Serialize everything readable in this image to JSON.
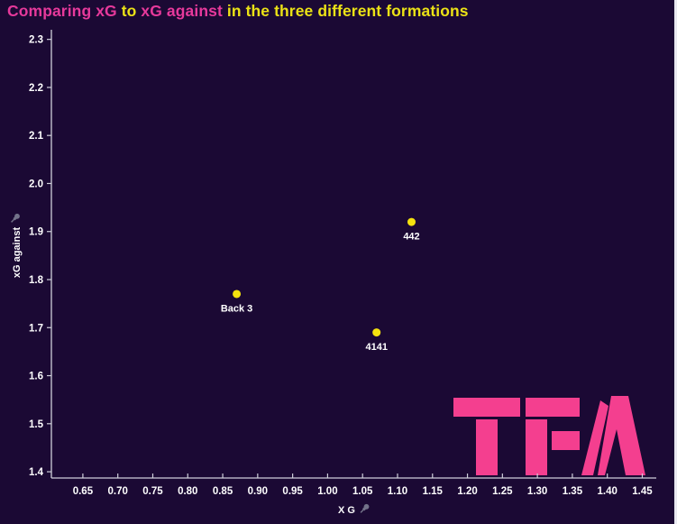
{
  "title": {
    "segments": [
      {
        "text": "Comparing xG ",
        "color": "#e6399b"
      },
      {
        "text": "to",
        "color": "#ebe216"
      },
      {
        "text": " xG against ",
        "color": "#e6399b"
      },
      {
        "text": "in the three different formations",
        "color": "#ebe216"
      }
    ]
  },
  "chart_data": {
    "type": "scatter",
    "title": "Comparing xG to xG against in the three different formations",
    "xlabel": "X G",
    "ylabel": "xG against",
    "xlim": [
      0.605,
      1.47
    ],
    "ylim": [
      1.387,
      2.32
    ],
    "x_ticks": [
      0.65,
      0.7,
      0.75,
      0.8,
      0.85,
      0.9,
      0.95,
      1.0,
      1.05,
      1.1,
      1.15,
      1.2,
      1.25,
      1.3,
      1.35,
      1.4,
      1.45
    ],
    "y_ticks": [
      1.4,
      1.5,
      1.6,
      1.7,
      1.8,
      1.9,
      2.0,
      2.1,
      2.2,
      2.3
    ],
    "grid": false,
    "legend": false,
    "background_color": "#1b0934",
    "axis_color": "#cfcfda",
    "tick_label_color": "#ffffff",
    "point_color": "#f4e20e",
    "point_label_color": "#ffffff",
    "points": [
      {
        "label": "Back 3",
        "x": 0.87,
        "y": 1.77
      },
      {
        "label": "4141",
        "x": 1.07,
        "y": 1.69
      },
      {
        "label": "442",
        "x": 1.12,
        "y": 1.92
      }
    ]
  },
  "icons": {
    "x_axis_pin": "pushpin",
    "y_axis_pin": "pushpin",
    "pin_color": "#73738a"
  },
  "watermark": {
    "text": "TFA",
    "color": "#f43f8f"
  }
}
